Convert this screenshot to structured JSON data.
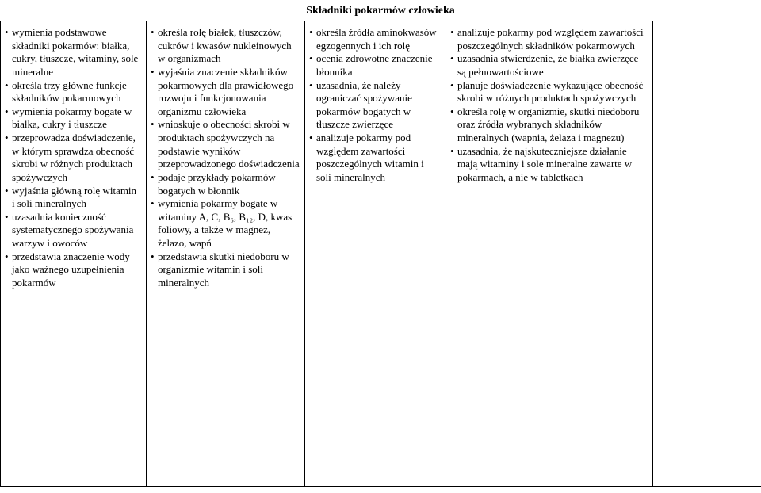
{
  "title": "Składniki pokarmów człowieka",
  "columns": {
    "c1": [
      "wymienia podstawowe składniki pokarmów: białka, cukry, tłuszcze, witaminy, sole mineralne",
      "określa trzy główne funkcje składników pokarmowych",
      "wymienia pokarmy bogate w białka, cukry i tłuszcze",
      "przeprowadza doświadczenie, w którym sprawdza obecność skrobi w różnych produktach spożywczych",
      "wyjaśnia główną rolę witamin i soli mineralnych",
      "uzasadnia konieczność systematycznego spożywania warzyw i owoców",
      "przedstawia znaczenie wody jako ważnego uzupełnienia pokarmów"
    ],
    "c2": [
      "określa rolę białek, tłuszczów, cukrów i kwasów nukleinowych w organizmach",
      "wyjaśnia znaczenie składników pokarmowych dla prawidłowego rozwoju i funkcjonowania organizmu człowieka",
      "wnioskuje o obecności skrobi w produktach spożywczych na podstawie wyników przeprowadzonego doświadczenia",
      "podaje przykłady pokarmów bogatych w błonnik",
      "wymienia pokarmy bogate w witaminy A, C, B₆, B₁₂, D, kwas foliowy, a także w magnez, żelazo, wapń",
      "przedstawia skutki niedoboru w organizmie witamin i soli mineralnych"
    ],
    "c3": [
      "określa źródła aminokwasów egzogennych i ich rolę",
      "ocenia zdrowotne znaczenie błonnika",
      "uzasadnia, że należy ograniczać spożywanie pokarmów bogatych w tłuszcze zwierzęce",
      "analizuje pokarmy pod względem zawartości poszczególnych witamin i soli mineralnych"
    ],
    "c4": [
      "analizuje pokarmy pod względem zawartości poszczególnych składników pokarmowych",
      "uzasadnia stwierdzenie, że białka zwierzęce są pełnowartościowe",
      "planuje doświadczenie wykazujące obecność skrobi w różnych produktach spożywczych",
      "określa rolę w organizmie, skutki niedoboru oraz źródła wybranych składników mineralnych (wapnia, żelaza i magnezu)",
      "uzasadnia, że najskuteczniejsze działanie mają witaminy i sole mineralne zawarte w pokarmach, a nie w tabletkach"
    ]
  }
}
